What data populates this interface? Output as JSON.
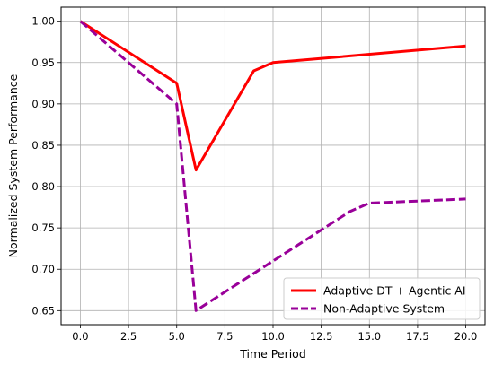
{
  "chart_data": {
    "type": "line",
    "title": "",
    "xlabel": "Time Period",
    "ylabel": "Normalized System Performance",
    "xlim": [
      -1.0,
      21.0
    ],
    "ylim": [
      0.633,
      1.017
    ],
    "xticks": [
      0.0,
      2.5,
      5.0,
      7.5,
      10.0,
      12.5,
      15.0,
      17.5,
      20.0
    ],
    "xtick_labels": [
      "0.0",
      "2.5",
      "5.0",
      "7.5",
      "10.0",
      "12.5",
      "15.0",
      "17.5",
      "20.0"
    ],
    "yticks": [
      0.65,
      0.7,
      0.75,
      0.8,
      0.85,
      0.9,
      0.95,
      1.0
    ],
    "ytick_labels": [
      "0.65",
      "0.70",
      "0.75",
      "0.80",
      "0.85",
      "0.90",
      "0.95",
      "1.00"
    ],
    "grid": true,
    "legend_position": "bottom-right",
    "series": [
      {
        "name": "Adaptive DT + Agentic AI",
        "color": "#ff0000",
        "style": "solid",
        "x": [
          0,
          5,
          6,
          9,
          10,
          20
        ],
        "y": [
          1.0,
          0.925,
          0.82,
          0.94,
          0.95,
          0.97
        ]
      },
      {
        "name": "Non-Adaptive System",
        "color": "#990099",
        "style": "dashed",
        "x": [
          0,
          5,
          6,
          14,
          15,
          20
        ],
        "y": [
          1.0,
          0.9,
          0.65,
          0.77,
          0.78,
          0.785
        ]
      }
    ]
  }
}
